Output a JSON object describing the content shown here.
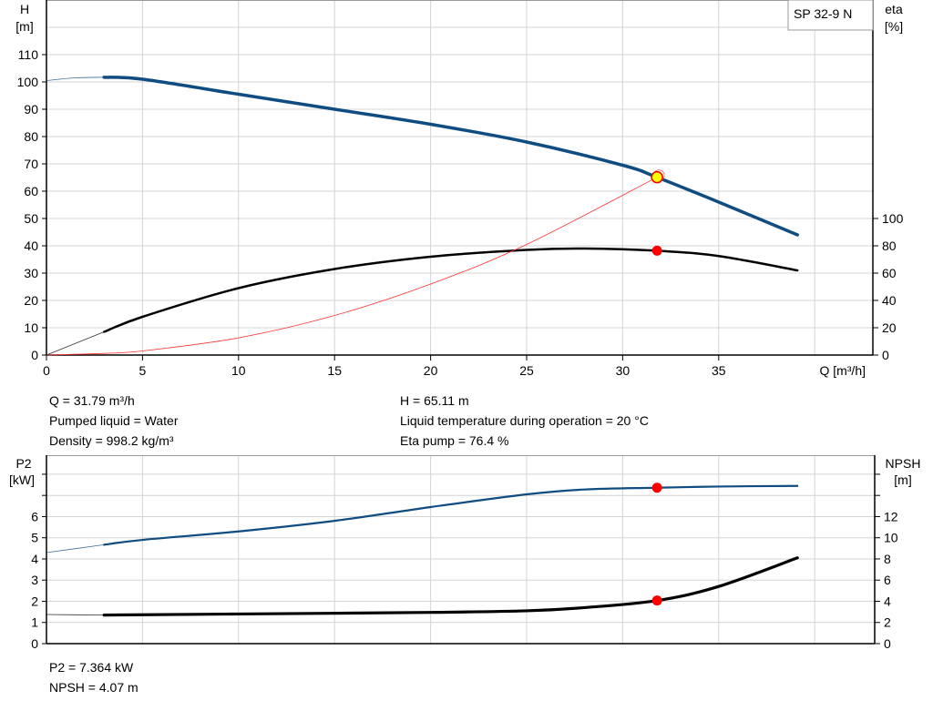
{
  "chart_data": [
    {
      "type": "line",
      "title": "SP 32-9 N",
      "xlabel": "Q [m³/h]",
      "xlim": [
        0,
        40
      ],
      "xticks": [
        0,
        5,
        10,
        15,
        20,
        25,
        30,
        35
      ],
      "grid": true,
      "y_left": {
        "label_top": "H",
        "label_unit": "[m]",
        "ticks": [
          0,
          10,
          20,
          30,
          40,
          50,
          60,
          70,
          80,
          90,
          100,
          110
        ],
        "lim": [
          0,
          130
        ]
      },
      "y_right": {
        "label_top": "eta",
        "label_unit": "[%]",
        "ticks": [
          0,
          20,
          40,
          60,
          80,
          100
        ],
        "lim": [
          0,
          260
        ]
      },
      "series": [
        {
          "key": "H",
          "axis": "left",
          "color": "#0f4c81",
          "thin_until": 3,
          "x": [
            0,
            1.5,
            3,
            5,
            10,
            15,
            20,
            25,
            30,
            31.79,
            35,
            39.1
          ],
          "y": [
            100.5,
            101.5,
            101.7,
            101,
            95.5,
            90,
            84.5,
            78,
            69.5,
            65.1,
            56,
            44
          ]
        },
        {
          "key": "eta",
          "axis": "right",
          "color": "#000000",
          "thin_until": 3,
          "x": [
            0,
            3,
            5,
            10,
            15,
            20,
            25,
            28,
            31.79,
            35,
            39.1
          ],
          "y": [
            0,
            17,
            28,
            49,
            63,
            72,
            77,
            78,
            76.4,
            72.5,
            62
          ]
        },
        {
          "key": "system",
          "axis": "left",
          "color": "#ff3030",
          "thin_until": 0,
          "x": [
            0,
            3,
            5,
            10,
            15,
            20,
            25,
            31.79
          ],
          "y": [
            0,
            0.6,
            1.5,
            6.3,
            14.5,
            26,
            40.5,
            65.1
          ]
        }
      ],
      "operating_point": {
        "Q": 31.79,
        "H": 65.11,
        "eta": 76.4
      }
    },
    {
      "type": "line",
      "xlim": [
        0,
        40
      ],
      "grid": true,
      "y_left": {
        "label_top": "P2",
        "label_unit": "[kW]",
        "ticks": [
          0,
          1,
          2,
          3,
          4,
          5,
          6
        ],
        "lim": [
          0,
          8.9
        ]
      },
      "y_right": {
        "label_top": "NPSH",
        "label_unit": "[m]",
        "ticks": [
          0,
          2,
          4,
          6,
          8,
          10,
          12
        ],
        "lim": [
          0,
          17.8
        ]
      },
      "series": [
        {
          "key": "P2",
          "axis": "left",
          "color": "#0f4c81",
          "thin_until": 3,
          "x": [
            0,
            3,
            5,
            10,
            15,
            20,
            25,
            28,
            31.79,
            35,
            39.1
          ],
          "y": [
            4.3,
            4.67,
            4.9,
            5.3,
            5.8,
            6.45,
            7.05,
            7.28,
            7.364,
            7.42,
            7.45
          ]
        },
        {
          "key": "NPSH",
          "axis": "right",
          "color": "#000000",
          "thin_until": 3,
          "x": [
            0,
            3,
            10,
            20,
            25,
            28,
            31.79,
            35,
            39.1
          ],
          "y": [
            2.75,
            2.7,
            2.8,
            2.95,
            3.1,
            3.4,
            4.07,
            5.4,
            8.1
          ]
        }
      ],
      "operating_point": {
        "Q": 31.79,
        "P2": 7.364,
        "NPSH": 4.07
      }
    }
  ],
  "info_top": {
    "q": "Q = 31.79 m³/h",
    "liquid": "Pumped liquid = Water",
    "density": "Density = 998.2 kg/m³",
    "h": "H = 65.11 m",
    "temp": "Liquid temperature during operation = 20 °C",
    "eta": "Eta pump = 76.4 %"
  },
  "info_bottom": {
    "p2": "P2 = 7.364 kW",
    "npsh": "NPSH = 4.07 m"
  }
}
